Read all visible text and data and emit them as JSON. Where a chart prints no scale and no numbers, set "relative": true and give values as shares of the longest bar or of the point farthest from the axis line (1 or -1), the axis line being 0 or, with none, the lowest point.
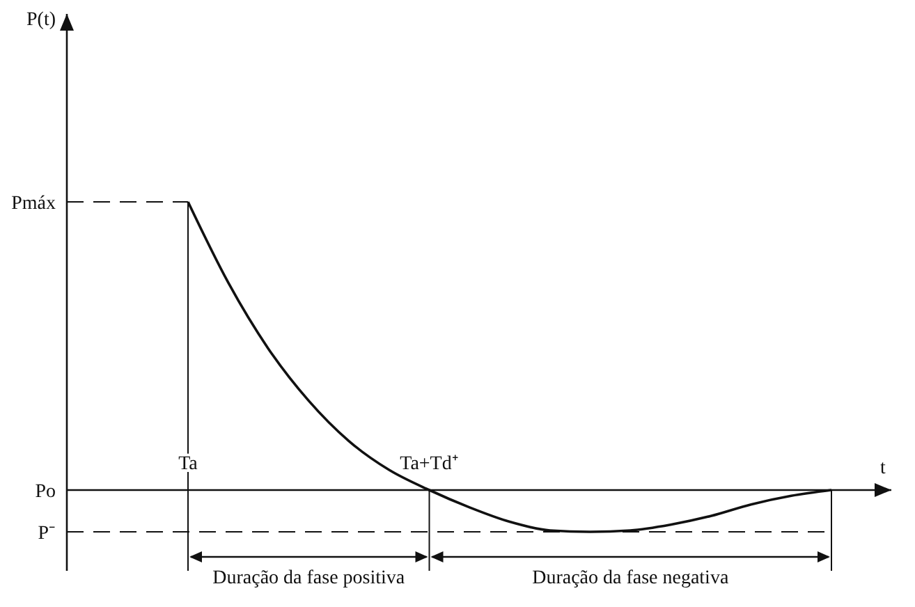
{
  "chart_data": {
    "type": "line",
    "xlabel": "t",
    "relative": true,
    "categories": [
      "Ta",
      null,
      null,
      null,
      null,
      null,
      "Ta+Td⁺",
      null,
      null,
      null,
      null,
      null,
      null,
      null,
      null,
      null,
      null
    ],
    "series": [
      {
        "color": "#111111",
        "values": [
          1,
          0.72,
          0.49,
          0.31,
          0.17,
          0.07,
          0,
          -0.06,
          -0.11,
          -0.14,
          -0.145,
          -0.14,
          -0.12,
          -0.09,
          -0.05,
          -0.02,
          0
        ]
      }
    ],
    "annotations": [
      "Pmáx",
      "Po",
      "P⁻",
      "Duração da fase positiva",
      "Duração da fase negativa",
      "P(t)"
    ],
    "marker": "none",
    "line_style": "solid"
  }
}
